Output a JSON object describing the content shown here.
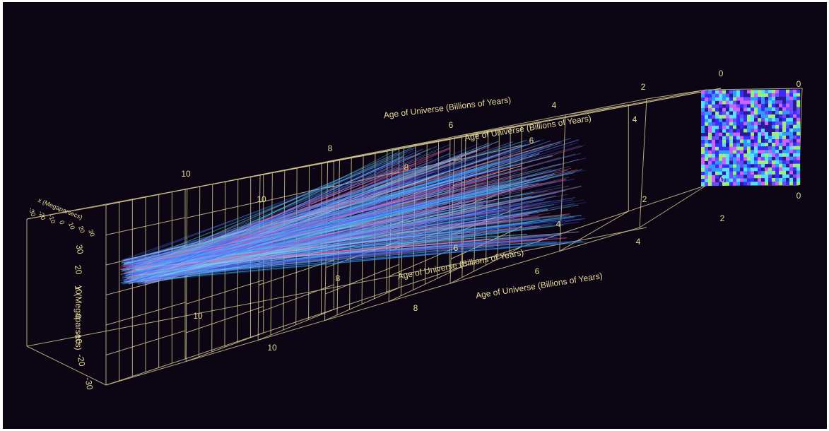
{
  "axis_titles": [
    "Age of Universe (Billions of Years)",
    "Age of Universe (Billions of Years)",
    "Age of Universe (Billions of Years)",
    "Age of Universe (Billions of Years)",
    "Y (Megaparsecs)",
    "x (Megaparsecs)"
  ],
  "age_ticks_top": [
    "10",
    "8",
    "6",
    "4",
    "2",
    "0"
  ],
  "age_ticks_upper": [
    "10",
    "8",
    "6",
    "4",
    "0"
  ],
  "age_ticks_middle": [
    "10",
    "8",
    "6",
    "4",
    "2",
    "0"
  ],
  "age_ticks_lower": [
    "10",
    "8",
    "6",
    "4",
    "2",
    "0"
  ],
  "y_ticks": [
    "30",
    "20",
    "10",
    "0",
    "-10",
    "-20",
    "-30"
  ],
  "x_ticks": [
    "-30",
    "-20",
    "-10",
    "0",
    "10",
    "20",
    "30"
  ]
}
